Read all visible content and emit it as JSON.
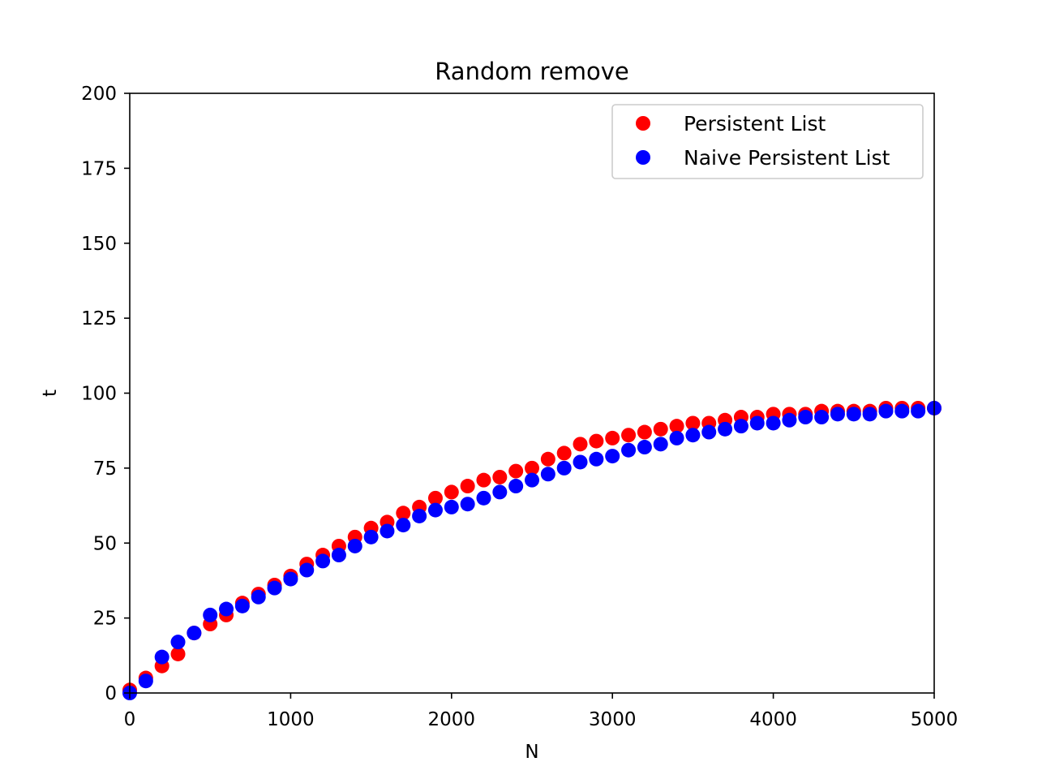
{
  "chart_data": {
    "type": "scatter",
    "title": "Random remove",
    "xlabel": "N",
    "ylabel": "t",
    "xlim": [
      0,
      5000
    ],
    "ylim": [
      0,
      200
    ],
    "xticks": [
      0,
      1000,
      2000,
      3000,
      4000,
      5000
    ],
    "yticks": [
      0,
      25,
      50,
      75,
      100,
      125,
      150,
      175,
      200
    ],
    "grid": false,
    "legend_position": "top-right",
    "x": [
      0,
      100,
      200,
      300,
      400,
      500,
      600,
      700,
      800,
      900,
      1000,
      1100,
      1200,
      1300,
      1400,
      1500,
      1600,
      1700,
      1800,
      1900,
      2000,
      2100,
      2200,
      2300,
      2400,
      2500,
      2600,
      2700,
      2800,
      2900,
      3000,
      3100,
      3200,
      3300,
      3400,
      3500,
      3600,
      3700,
      3800,
      3900,
      4000,
      4100,
      4200,
      4300,
      4400,
      4500,
      4600,
      4700,
      4800,
      4900,
      5000
    ],
    "series": [
      {
        "name": "Persistent List",
        "color": "#ff0000",
        "values": [
          1,
          5,
          9,
          13,
          20,
          23,
          26,
          30,
          33,
          36,
          39,
          43,
          46,
          49,
          52,
          55,
          57,
          60,
          62,
          65,
          67,
          69,
          71,
          72,
          74,
          75,
          78,
          80,
          83,
          84,
          85,
          86,
          87,
          88,
          89,
          90,
          90,
          91,
          92,
          92,
          93,
          93,
          93,
          94,
          94,
          94,
          94,
          95,
          95,
          95,
          95
        ]
      },
      {
        "name": "Naive Persistent List",
        "color": "#0000ff",
        "values": [
          0,
          4,
          12,
          17,
          20,
          26,
          28,
          29,
          32,
          35,
          38,
          41,
          44,
          46,
          49,
          52,
          54,
          56,
          59,
          61,
          62,
          63,
          65,
          67,
          69,
          71,
          73,
          75,
          77,
          78,
          79,
          81,
          82,
          83,
          85,
          86,
          87,
          88,
          89,
          90,
          90,
          91,
          92,
          92,
          93,
          93,
          93,
          94,
          94,
          94,
          95
        ]
      }
    ]
  }
}
